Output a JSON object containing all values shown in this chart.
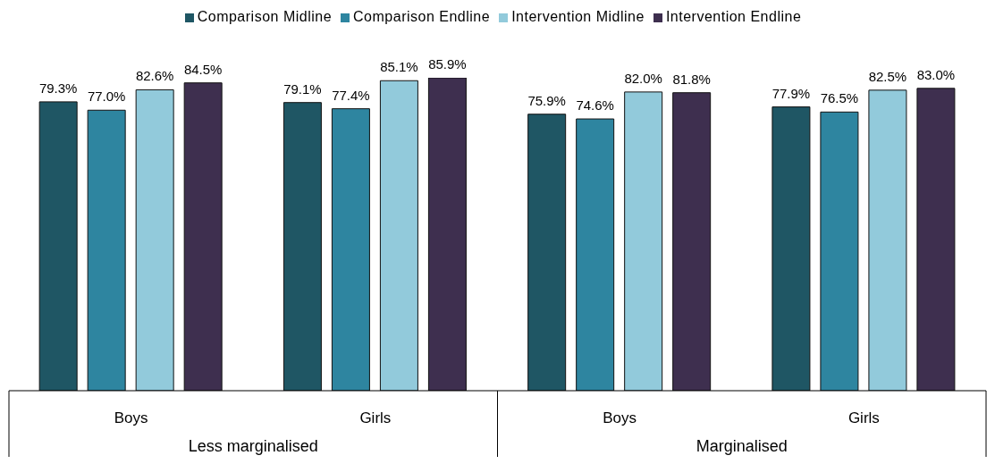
{
  "chart_data": {
    "type": "bar",
    "categories": [
      "Boys",
      "Girls",
      "Boys",
      "Girls"
    ],
    "series": [
      {
        "name": "Comparison Midline",
        "color": "#1f5664",
        "values": [
          79.3,
          79.1,
          75.9,
          77.9
        ],
        "value_labels": [
          "79.3%",
          "79.1%",
          "75.9%",
          "77.9%"
        ]
      },
      {
        "name": "Comparison Endline",
        "color": "#2e85a0",
        "values": [
          77.0,
          77.4,
          74.6,
          76.5
        ],
        "value_labels": [
          "77.0%",
          "77.4%",
          "74.6%",
          "76.5%"
        ]
      },
      {
        "name": "Intervention Midline",
        "color": "#92cadb",
        "values": [
          82.6,
          85.1,
          82.0,
          82.5
        ],
        "value_labels": [
          "82.6%",
          "85.1%",
          "82.0%",
          "82.5%"
        ]
      },
      {
        "name": "Intervention Endline",
        "color": "#3e2f4f",
        "values": [
          84.5,
          85.9,
          81.8,
          83.0
        ],
        "value_labels": [
          "84.5%",
          "85.9%",
          "81.8%",
          "83.0%"
        ]
      }
    ],
    "annotations": [
      "Less marginalised",
      "Marginalised"
    ],
    "legend": "top",
    "grid": false
  }
}
